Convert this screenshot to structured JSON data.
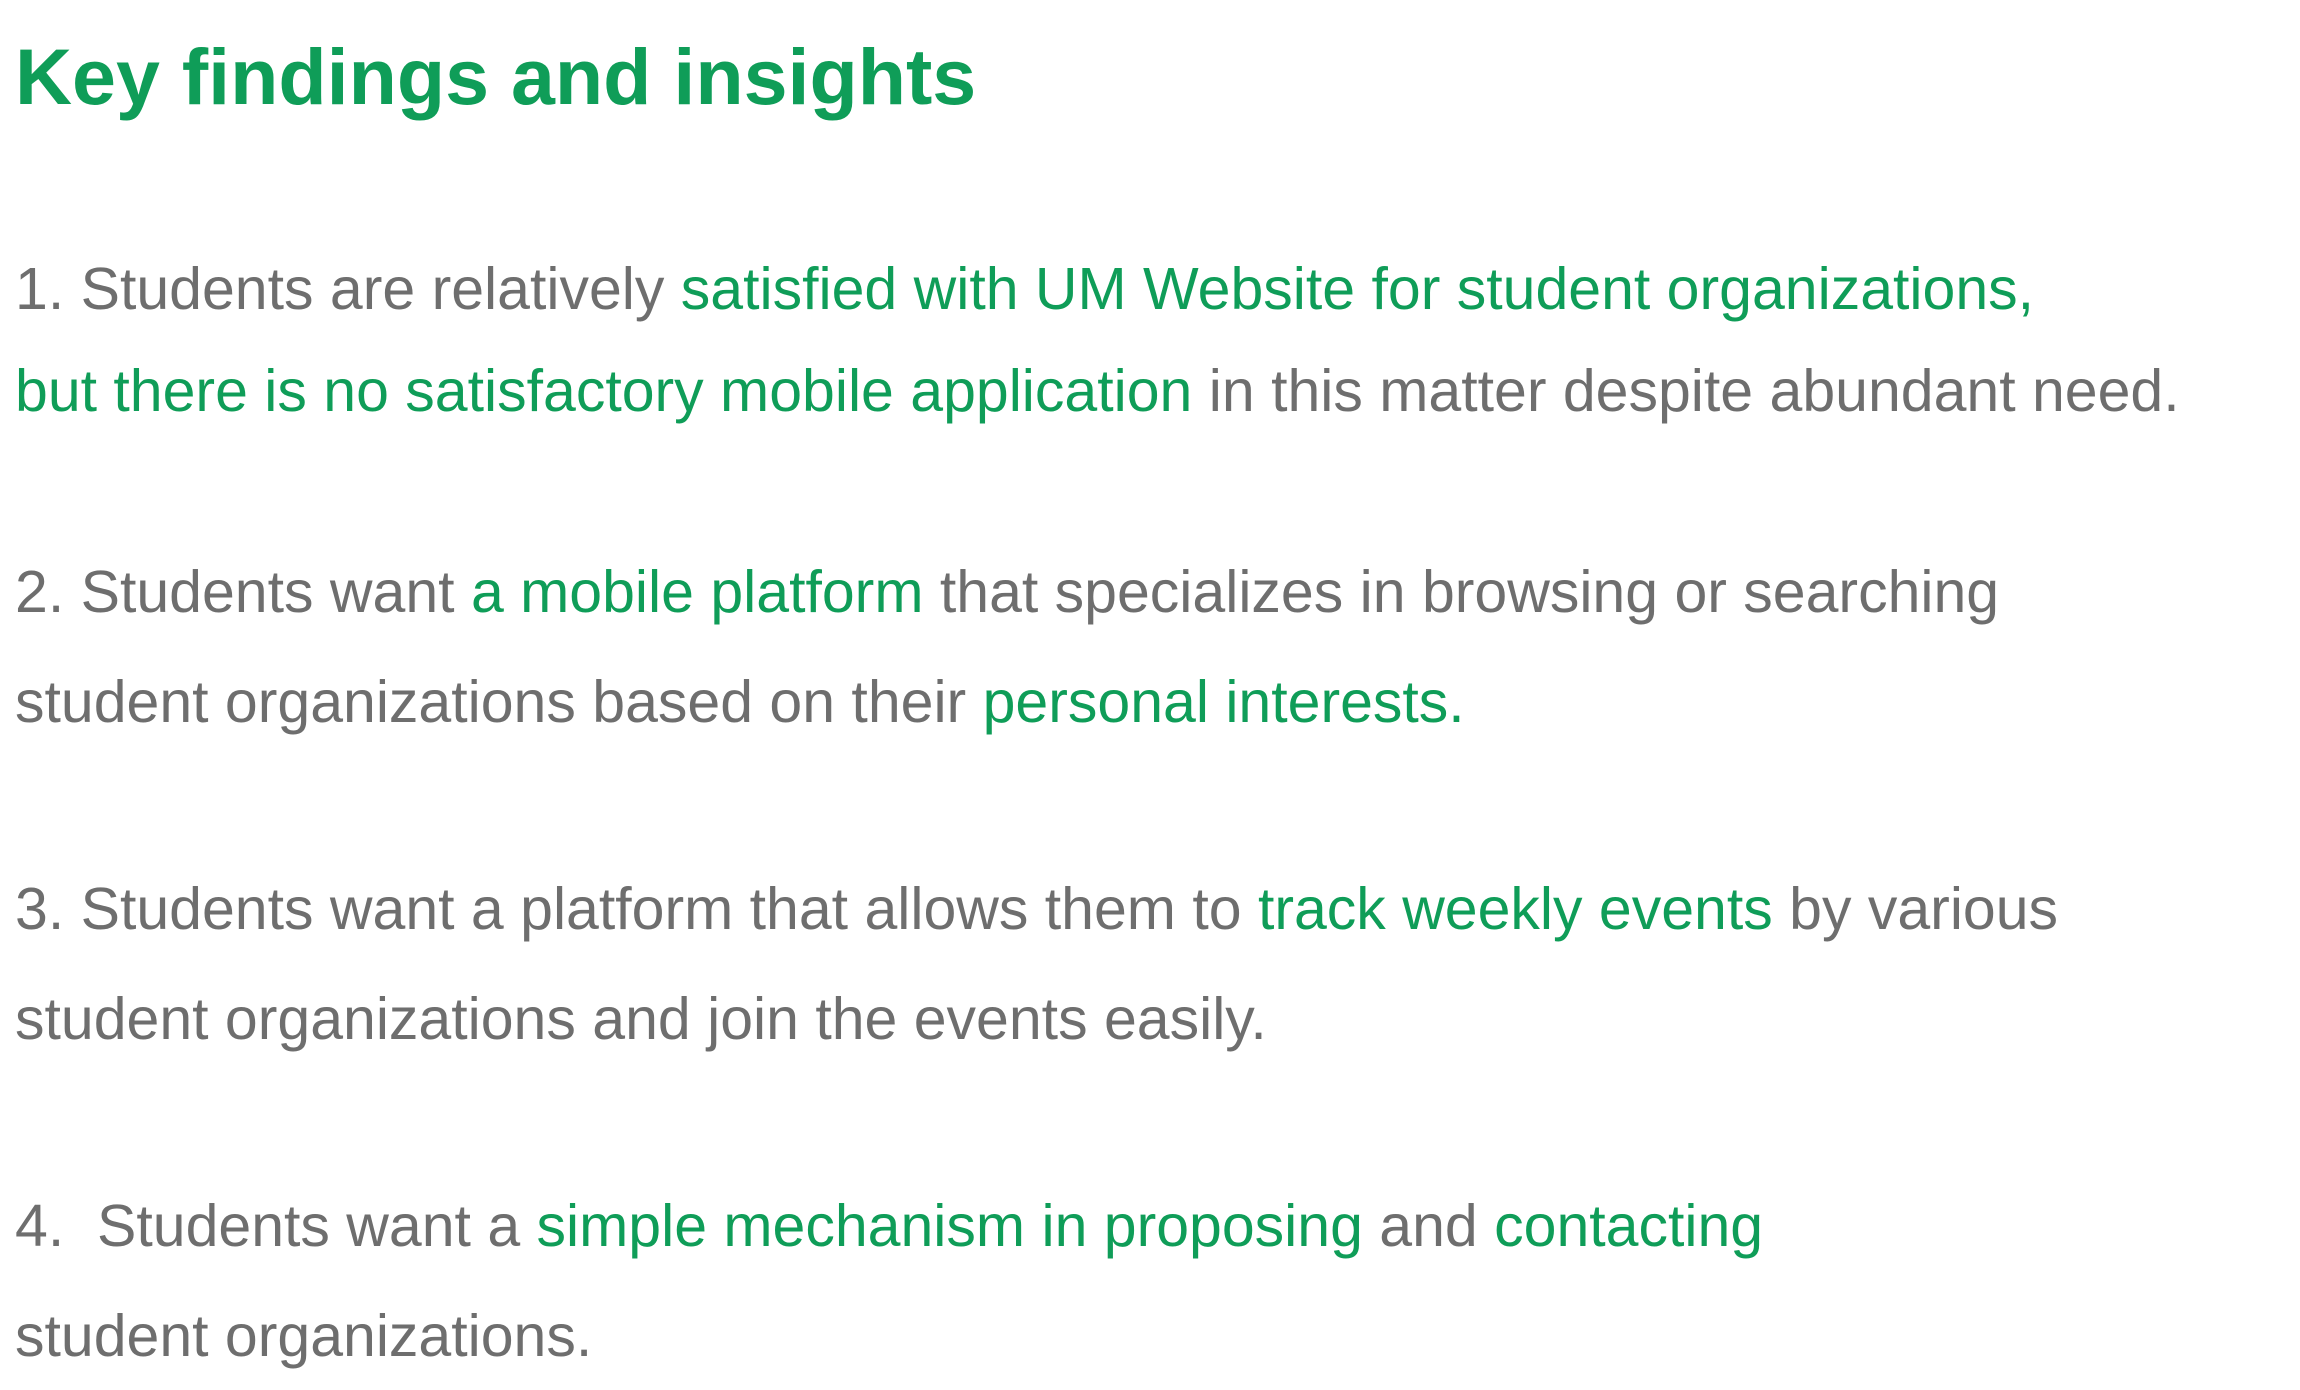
{
  "title": "Key findings and insights",
  "findings": [
    {
      "number": "1.",
      "line1": {
        "plain_1": "Students are relatively ",
        "highlight_1": "satisfied with UM Website for student organizations,"
      },
      "line2": {
        "highlight_1": "but there is no satisfactory mobile application",
        "plain_1": " in this matter despite abundant need."
      }
    },
    {
      "number": "2.",
      "line1": {
        "plain_1": "Students want ",
        "highlight_1": "a mobile platform",
        "plain_2": " that specializes in browsing or searching"
      },
      "line2": {
        "plain_1": "student organizations based on their ",
        "highlight_1": "personal interests."
      }
    },
    {
      "number": "3.",
      "line1": {
        "plain_1": "Students want a platform that allows them to ",
        "highlight_1": "track weekly events",
        "plain_2": " by various"
      },
      "line2": {
        "plain_1": "student organizations and join the events easily."
      }
    },
    {
      "number": "4.",
      "line1": {
        "plain_1": "Students want a ",
        "highlight_1": "simple mechanism in proposing",
        "plain_2": " and ",
        "highlight_2": "contacting"
      },
      "line2": {
        "plain_1": "student organizations."
      }
    }
  ],
  "colors": {
    "accent_green": "#0f9d58",
    "body_gray": "#6e6e6e",
    "background": "#ffffff"
  }
}
